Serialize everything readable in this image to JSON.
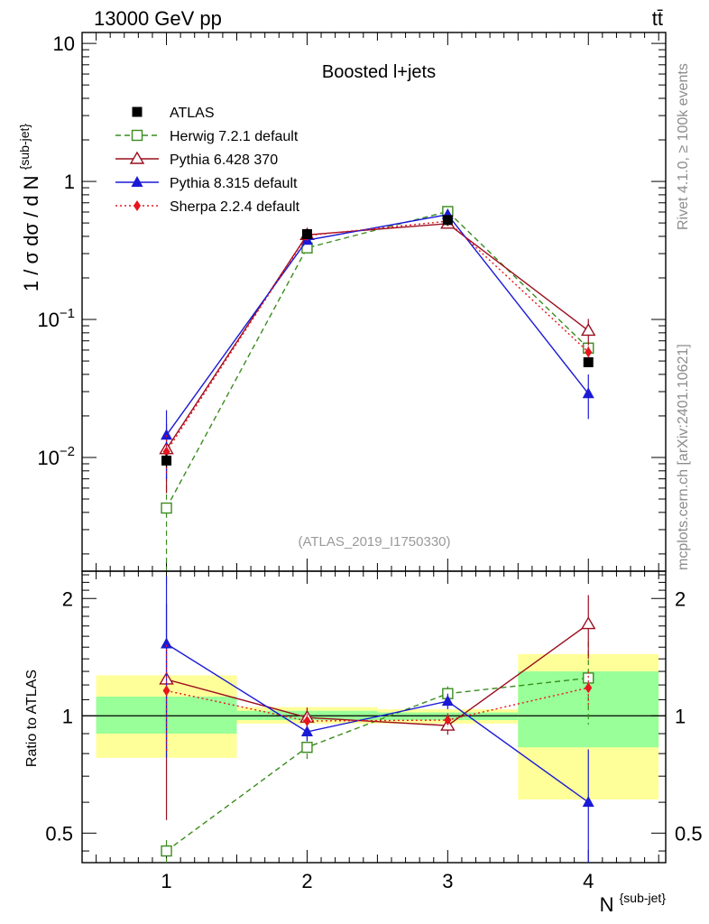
{
  "header": {
    "left": "13000 GeV pp",
    "right": "tt̄"
  },
  "side_labels": {
    "top": "Rivet 4.1.0, ≥ 100k events",
    "bottom": "mcplots.cern.ch [arXiv:2401.10621]"
  },
  "chart_data": [
    {
      "type": "line",
      "panel": "main",
      "title": "Boosted l+jets",
      "analysis_label": "(ATLAS_2019_I1750330)",
      "xlabel": "N^{sub-jet}",
      "ylabel": "1 / σ dσ / d N^{sub-jet}",
      "yscale": "log",
      "xlim": [
        0.4,
        4.55
      ],
      "ylim": [
        0.0015,
        12
      ],
      "x": [
        1,
        2,
        3,
        4
      ],
      "x_tick_labels": [
        "1",
        "2",
        "3",
        "4"
      ],
      "y_tick_labels": [
        {
          "value": 0.01,
          "base": "10",
          "exp": "−2"
        },
        {
          "value": 0.1,
          "base": "10",
          "exp": "−1"
        },
        {
          "value": 1,
          "base": "1",
          "exp": ""
        },
        {
          "value": 10,
          "base": "10",
          "exp": ""
        }
      ],
      "legend_position": "top-left",
      "series": [
        {
          "name": "ATLAS",
          "color": "#000000",
          "dash": "",
          "marker": "square-filled",
          "values": [
            0.0095,
            0.415,
            0.525,
            0.049
          ],
          "err_lo": [
            0.001,
            0.012,
            0.012,
            0.003
          ],
          "err_hi": [
            0.001,
            0.012,
            0.012,
            0.003
          ]
        },
        {
          "name": "Herwig 7.2.1 default",
          "color": "#3a8c1e",
          "dash": "6,4",
          "marker": "square-open",
          "values": [
            0.0043,
            0.33,
            0.605,
            0.062
          ],
          "err_lo": [
            0.003,
            0.015,
            0.015,
            0.006
          ],
          "err_hi": [
            0.003,
            0.015,
            0.015,
            0.006
          ]
        },
        {
          "name": "Pythia 6.428 370",
          "color": "#9a0f1f",
          "dash": "",
          "marker": "triangle-open",
          "values": [
            0.0115,
            0.41,
            0.495,
            0.083
          ],
          "err_lo": [
            0.006,
            0.02,
            0.02,
            0.018
          ],
          "err_hi": [
            0.006,
            0.02,
            0.02,
            0.018
          ]
        },
        {
          "name": "Pythia 8.315 default",
          "color": "#1a1ad6",
          "dash": "",
          "marker": "triangle-filled",
          "values": [
            0.0145,
            0.375,
            0.575,
            0.029
          ],
          "err_lo": [
            0.0075,
            0.02,
            0.02,
            0.01
          ],
          "err_hi": [
            0.0075,
            0.02,
            0.02,
            0.011
          ]
        },
        {
          "name": "Sherpa 2.2.4 default",
          "color": "#e8141e",
          "dash": "2,3",
          "marker": "diamond-filled",
          "values": [
            0.011,
            0.405,
            0.515,
            0.058
          ],
          "err_lo": [
            0.0035,
            0.015,
            0.015,
            0.006
          ],
          "err_hi": [
            0.0035,
            0.015,
            0.015,
            0.006
          ]
        }
      ]
    },
    {
      "type": "line",
      "panel": "ratio",
      "ylabel": "Ratio to ATLAS",
      "yscale": "log",
      "ylim": [
        0.42,
        2.35
      ],
      "y_tick_labels": [
        "0.5",
        "1",
        "2"
      ],
      "y_tick_values": [
        0.5,
        1,
        2
      ],
      "reference_line": 1,
      "bands": [
        {
          "x": [
            0.5,
            1.5
          ],
          "yellow": [
            0.78,
            1.27
          ],
          "green": [
            0.9,
            1.12
          ]
        },
        {
          "x": [
            1.5,
            2.5
          ],
          "yellow": [
            0.955,
            1.053
          ],
          "green": [
            0.975,
            1.03
          ]
        },
        {
          "x": [
            2.5,
            3.5
          ],
          "yellow": [
            0.955,
            1.04
          ],
          "green": [
            0.975,
            1.02
          ]
        },
        {
          "x": [
            3.5,
            4.5
          ],
          "yellow": [
            0.61,
            1.44
          ],
          "green": [
            0.83,
            1.3
          ]
        }
      ],
      "series": [
        {
          "name": "Herwig 7.2.1 default",
          "color": "#3a8c1e",
          "dash": "6,4",
          "marker": "square-open",
          "values": [
            0.45,
            0.83,
            1.14,
            1.25
          ],
          "err_lo": [
            0.03,
            0.06,
            0.05,
            0.3
          ],
          "err_hi": [
            0.03,
            0.06,
            0.05,
            0.3
          ]
        },
        {
          "name": "Pythia 6.428 370",
          "color": "#9a0f1f",
          "dash": "",
          "marker": "triangle-open",
          "values": [
            1.24,
            0.99,
            0.944,
            1.72
          ],
          "err_lo": [
            0.7,
            0.06,
            0.05,
            0.32
          ],
          "err_hi": [
            0.7,
            0.06,
            0.05,
            0.32
          ]
        },
        {
          "name": "Pythia 8.315 default",
          "color": "#1a1ad6",
          "dash": "",
          "marker": "triangle-filled",
          "values": [
            1.53,
            0.91,
            1.09,
            0.6
          ],
          "err_lo": [
            0.75,
            0.05,
            0.05,
            0.26
          ],
          "err_hi": [
            0.75,
            0.05,
            0.05,
            0.22
          ]
        },
        {
          "name": "Sherpa 2.2.4 default",
          "color": "#e8141e",
          "dash": "2,3",
          "marker": "diamond-filled",
          "values": [
            1.16,
            0.97,
            0.975,
            1.18
          ],
          "err_lo": [
            0.36,
            0.04,
            0.04,
            0.12
          ],
          "err_hi": [
            0.36,
            0.04,
            0.04,
            0.12
          ]
        }
      ]
    }
  ]
}
